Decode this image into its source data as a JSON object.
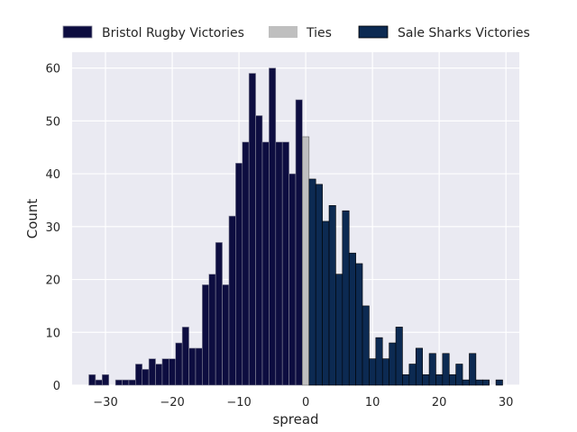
{
  "chart_data": {
    "type": "bar",
    "xlabel": "spread",
    "ylabel": "Count",
    "xlim": [
      -35,
      32
    ],
    "ylim": [
      0,
      63
    ],
    "xticks": [
      -30,
      -20,
      -10,
      0,
      10,
      20,
      30
    ],
    "yticks": [
      0,
      10,
      20,
      30,
      40,
      50,
      60
    ],
    "grid": true,
    "legend_placement": "top, outside plot",
    "series": [
      {
        "name": "Bristol Rugby Victories",
        "color": "#0d0d40",
        "x": [
          -32,
          -31,
          -30,
          -28,
          -27,
          -26,
          -25,
          -24,
          -23,
          -22,
          -21,
          -20,
          -19,
          -18,
          -17,
          -16,
          -15,
          -14,
          -13,
          -12,
          -11,
          -10,
          -9,
          -8,
          -7,
          -6,
          -5,
          -4,
          -3,
          -2,
          -1
        ],
        "values": [
          2,
          1,
          2,
          1,
          1,
          1,
          4,
          3,
          5,
          4,
          5,
          5,
          8,
          11,
          7,
          7,
          19,
          21,
          27,
          19,
          32,
          42,
          46,
          59,
          51,
          46,
          60,
          46,
          46,
          40,
          54
        ]
      },
      {
        "name": "Ties",
        "color": "#bfbfbf",
        "x": [
          0
        ],
        "values": [
          47
        ]
      },
      {
        "name": "Sale Sharks Victories",
        "color": "#0c2a52",
        "x": [
          1,
          2,
          3,
          4,
          5,
          6,
          7,
          8,
          9,
          10,
          11,
          12,
          13,
          14,
          15,
          16,
          17,
          18,
          19,
          20,
          21,
          22,
          23,
          24,
          25,
          26,
          27,
          29
        ],
        "values": [
          39,
          38,
          31,
          34,
          21,
          33,
          25,
          23,
          15,
          5,
          9,
          5,
          8,
          11,
          2,
          4,
          7,
          2,
          6,
          2,
          6,
          2,
          4,
          1,
          6,
          1,
          1,
          1
        ]
      }
    ]
  }
}
